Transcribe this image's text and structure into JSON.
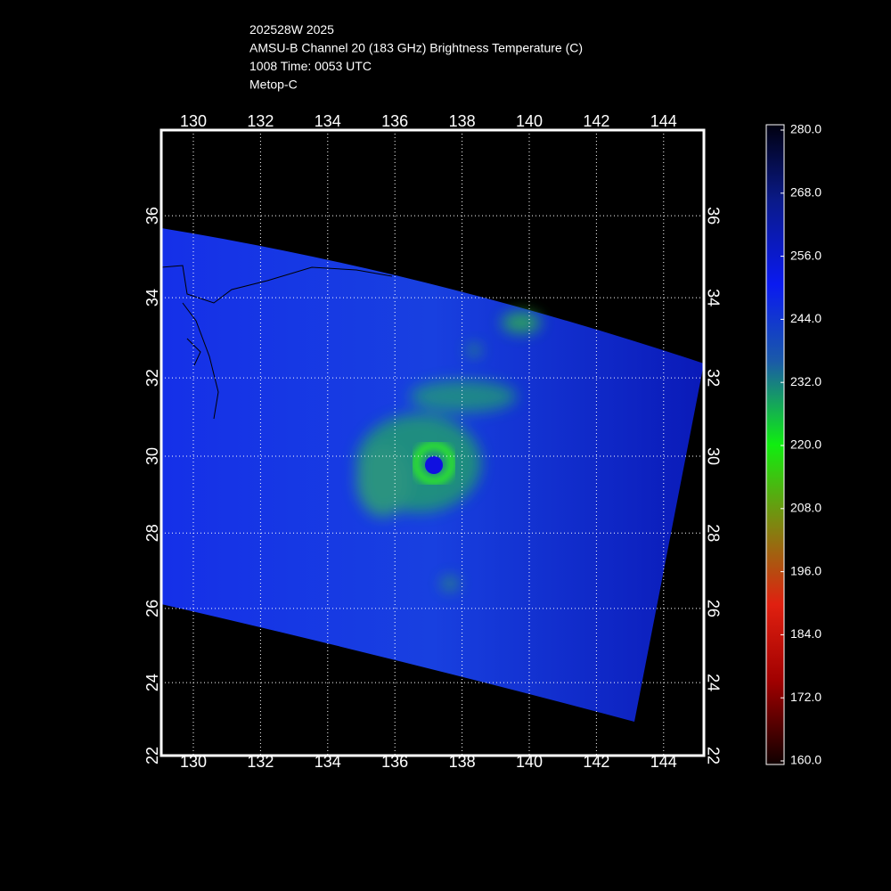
{
  "header": {
    "lines": [
      "202528W 2025",
      "AMSU-B Channel 20 (183 GHz) Brightness Temperature (C)",
      "1008 Time: 0053 UTC",
      "Metop-C"
    ]
  },
  "map": {
    "lon_ticks": [
      130,
      132,
      134,
      136,
      138,
      140,
      142,
      144
    ],
    "lat_ticks": [
      22,
      24,
      26,
      28,
      30,
      32,
      34,
      36
    ]
  },
  "colorbar": {
    "ticks": [
      {
        "value": 280,
        "label": "280.0"
      },
      {
        "value": 268,
        "label": "268.0"
      },
      {
        "value": 256,
        "label": "256.0"
      },
      {
        "value": 244,
        "label": "244.0"
      },
      {
        "value": 232,
        "label": "232.0"
      },
      {
        "value": 220,
        "label": "220.0"
      },
      {
        "value": 208,
        "label": "208.0"
      },
      {
        "value": 196,
        "label": "196.0"
      },
      {
        "value": 184,
        "label": "184.0"
      },
      {
        "value": 172,
        "label": "172.0"
      },
      {
        "value": 160,
        "label": "160.0"
      }
    ],
    "lim": [
      160,
      280
    ]
  }
}
